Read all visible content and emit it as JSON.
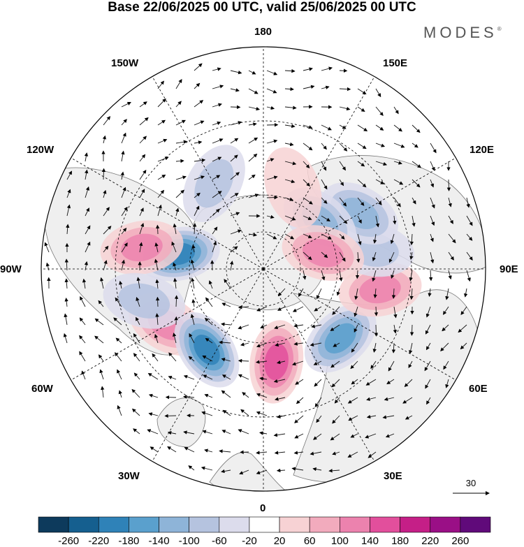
{
  "title": "Base 22/06/2025 00 UTC, valid 25/06/2025 00 UTC",
  "brand": "MODES",
  "brand_mark": "®",
  "longitude_labels": {
    "lon_180": "180",
    "lon_150e": "150E",
    "lon_120e": "120E",
    "lon_90e": "90E",
    "lon_60e": "60E",
    "lon_30e": "30E",
    "lon_0": "0",
    "lon_30w": "30W",
    "lon_60w": "60W",
    "lon_90w": "90W",
    "lon_120w": "120W",
    "lon_150w": "150W"
  },
  "reference_vector": "30",
  "colorbar": {
    "colors": [
      "#0d3a5c",
      "#155f8f",
      "#2f82b8",
      "#5aa0cd",
      "#8eb4d8",
      "#b5c3df",
      "#dcdcec",
      "#ffffff",
      "#f7d2d4",
      "#f2abbd",
      "#ec82ae",
      "#e24f9c",
      "#c51f87",
      "#9a0f86",
      "#600a7a"
    ],
    "labels": [
      "-260",
      "-220",
      "-180",
      "-140",
      "-100",
      "-60",
      "-20",
      "20",
      "60",
      "100",
      "140",
      "180",
      "220",
      "260"
    ]
  },
  "anomaly_centers": [
    {
      "lon": -100,
      "lat": 55,
      "value": -200
    },
    {
      "lon": -100,
      "lat": 40,
      "value": 150
    },
    {
      "lon": -60,
      "lat": 45,
      "value": 140
    },
    {
      "lon": -35,
      "lat": 50,
      "value": -200
    },
    {
      "lon": 8,
      "lat": 52,
      "value": 170
    },
    {
      "lon": 48,
      "lat": 48,
      "value": -160
    },
    {
      "lon": 80,
      "lat": 42,
      "value": 140
    },
    {
      "lon": 100,
      "lat": 45,
      "value": -110
    },
    {
      "lon": 120,
      "lat": 45,
      "value": -140
    },
    {
      "lon": 130,
      "lat": 60,
      "value": -120
    },
    {
      "lon": 105,
      "lat": 65,
      "value": 130
    },
    {
      "lon": -150,
      "lat": 50,
      "value": -90
    },
    {
      "lon": -75,
      "lat": 40,
      "value": -80
    },
    {
      "lon": 160,
      "lat": 55,
      "value": 60
    }
  ]
}
